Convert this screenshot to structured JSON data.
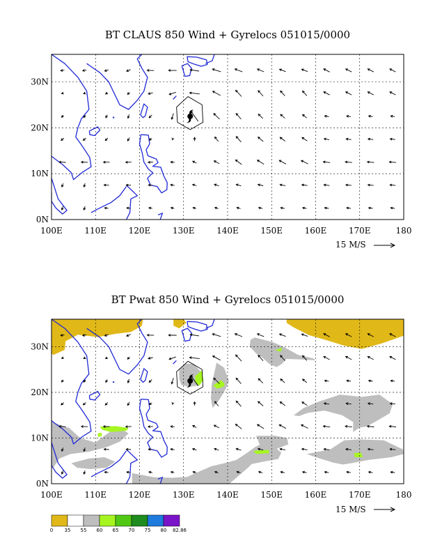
{
  "colors": {
    "coast": "#1f28d6",
    "arrow": "#000000",
    "grid": "#000000",
    "gyre_icon": "#000000",
    "shade_lt35": "#e0b818",
    "shade_55_60": "#bebebe",
    "shade_60_65": "#a6f520",
    "shade_65_70": "#50c814",
    "shade_70_75": "#1e8c1e",
    "shade_75_80": "#1e7adc",
    "shade_80_max": "#7a14c8"
  },
  "chart_data": [
    {
      "type": "vector-map",
      "title": "BT CLAUS 850 Wind + Gyrelocs 051015/0000",
      "xlim": [
        100,
        180
      ],
      "ylim": [
        0,
        36
      ],
      "x_ticks": [
        100,
        110,
        120,
        130,
        140,
        150,
        160,
        170,
        180
      ],
      "x_tick_labels": [
        "100E",
        "110E",
        "120E",
        "130E",
        "140E",
        "150E",
        "160E",
        "170E",
        "180"
      ],
      "y_ticks": [
        0,
        10,
        20,
        30
      ],
      "y_tick_labels": [
        "0N",
        "10N",
        "20N",
        "30N"
      ],
      "grid": true,
      "reference_vector": {
        "label": "15 M/S",
        "speed": 15
      },
      "gyre": {
        "lon": 131.5,
        "lat": 22.5,
        "shape": "hexagon",
        "symbol": "tropical-cyclone"
      },
      "wind_field": "850 hPa wind vectors, 5 deg spacing"
    },
    {
      "type": "vector-map",
      "title": "BT Pwat 850 Wind + Gyrelocs 051015/0000",
      "xlim": [
        100,
        180
      ],
      "ylim": [
        0,
        36
      ],
      "x_ticks": [
        100,
        110,
        120,
        130,
        140,
        150,
        160,
        170,
        180
      ],
      "x_tick_labels": [
        "100E",
        "110E",
        "120E",
        "130E",
        "140E",
        "150E",
        "160E",
        "170E",
        "180"
      ],
      "y_ticks": [
        0,
        10,
        20,
        30
      ],
      "y_tick_labels": [
        "0N",
        "10N",
        "20N",
        "30N"
      ],
      "grid": true,
      "reference_vector": {
        "label": "15 M/S",
        "speed": 15
      },
      "gyre": {
        "lon": 131.5,
        "lat": 22.5,
        "shape": "hexagon",
        "symbol": "tropical-cyclone"
      },
      "colorbar": {
        "levels": [
          "0",
          "35",
          "55",
          "60",
          "65",
          "70",
          "75",
          "80",
          "82.86"
        ],
        "colors": [
          "#e0b818",
          "#ffffff",
          "#bebebe",
          "#a6f520",
          "#50c814",
          "#1e8c1e",
          "#1e7adc",
          "#7a14c8"
        ]
      }
    }
  ]
}
